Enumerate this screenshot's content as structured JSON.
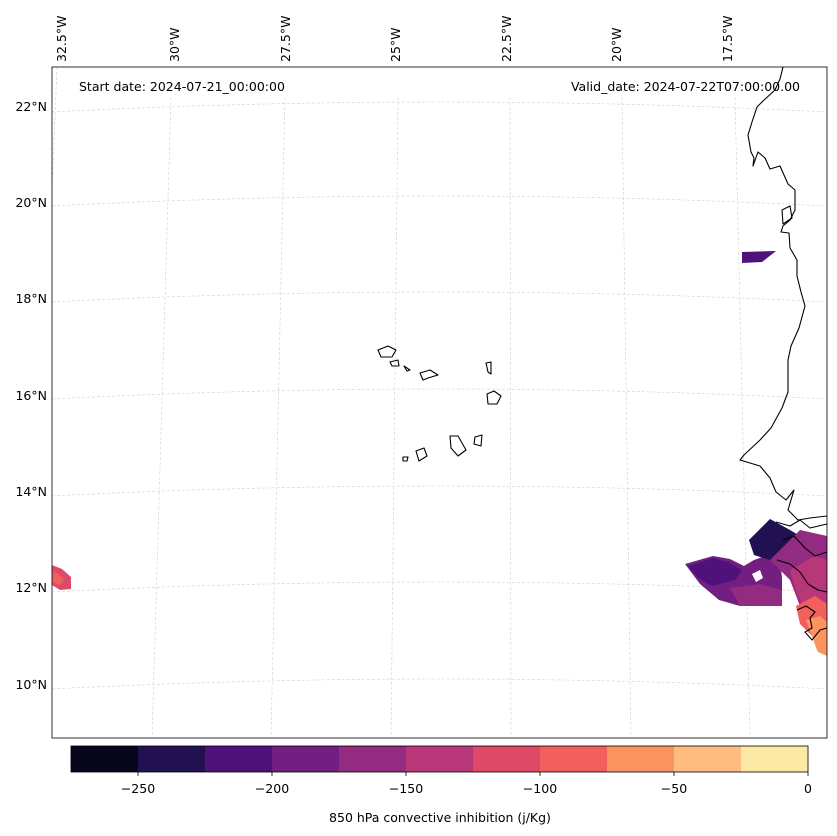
{
  "header": {
    "start_date": "Start date: 2024-07-21_00:00:00",
    "valid_date": "Valid_date: 2024-07-22T07:00:00.00"
  },
  "map": {
    "longitude_labels": [
      "32.5°W",
      "30°W",
      "27.5°W",
      "25°W",
      "22.5°W",
      "20°W",
      "17.5°W"
    ],
    "latitude_labels": [
      "22°N",
      "20°N",
      "18°N",
      "16°N",
      "14°N",
      "12°N",
      "10°N"
    ],
    "land_color": "#ffffff",
    "coastline_color": "#000000",
    "gridline_color": "#cccccc"
  },
  "colorbar": {
    "label": "850 hPa convective inhibition (j/Kg)",
    "tick_labels": [
      "−250",
      "−200",
      "−150",
      "−100",
      "−50",
      "0"
    ],
    "bins": [
      {
        "range": [
          -275,
          -250
        ],
        "color": "#06051a"
      },
      {
        "range": [
          -250,
          -225
        ],
        "color": "#221150"
      },
      {
        "range": [
          -225,
          -200
        ],
        "color": "#4f127b"
      },
      {
        "range": [
          -200,
          -175
        ],
        "color": "#721f81"
      },
      {
        "range": [
          -175,
          -150
        ],
        "color": "#932b80"
      },
      {
        "range": [
          -150,
          -125
        ],
        "color": "#b73779"
      },
      {
        "range": [
          -125,
          -100
        ],
        "color": "#de4968"
      },
      {
        "range": [
          -100,
          -75
        ],
        "color": "#f1605d"
      },
      {
        "range": [
          -75,
          -50
        ],
        "color": "#fc9461"
      },
      {
        "range": [
          -50,
          -25
        ],
        "color": "#febd7e"
      },
      {
        "range": [
          -25,
          0
        ],
        "color": "#fde9a6"
      }
    ]
  }
}
